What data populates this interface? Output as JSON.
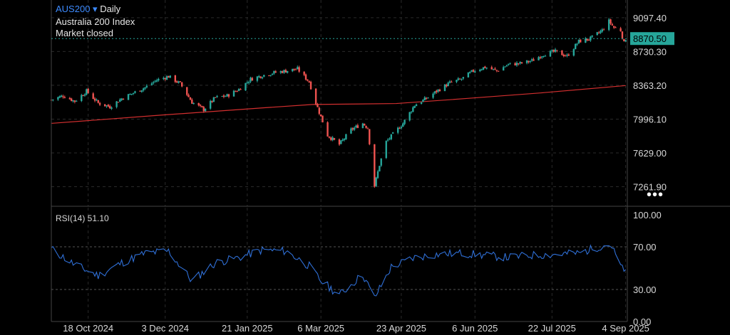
{
  "header": {
    "symbol": "AUS200",
    "dropdown_icon": "▾",
    "interval": "Daily",
    "name": "Australia 200 Index",
    "status": "Market closed"
  },
  "colors": {
    "up": "#26a69a",
    "down": "#ef5350",
    "ma": "#d32f2f",
    "rsi": "#2f6fd6",
    "grid": "#2a2a2a",
    "last_label_bg": "#26a69a"
  },
  "price_axis": {
    "ticks": [
      "9097.40",
      "8730.30",
      "8363.20",
      "7996.10",
      "7629.00",
      "7261.90"
    ],
    "last_price": "8870.50"
  },
  "time_axis": {
    "labels": [
      "18 Oct 2024",
      "3 Dec 2024",
      "21 Jan 2025",
      "6 Mar 2025",
      "23 Apr 2025",
      "6 Jun 2025",
      "22 Jul 2025",
      "4 Sep 2025"
    ]
  },
  "rsi": {
    "label": "RSI(14)",
    "value": "51.10",
    "ticks": [
      "100.00",
      "70.00",
      "30.00",
      "0.00"
    ]
  },
  "more_icon": "•••",
  "chart_data": {
    "type": "line",
    "price_range": [
      7050,
      9150
    ],
    "date_range": [
      "2024-09-26",
      "2025-09-05"
    ],
    "closes": [
      [
        "2024-09-26",
        8205
      ],
      [
        "2024-10-03",
        8250
      ],
      [
        "2024-10-10",
        8190
      ],
      [
        "2024-10-17",
        8300
      ],
      [
        "2024-10-24",
        8170
      ],
      [
        "2024-10-31",
        8130
      ],
      [
        "2024-11-07",
        8220
      ],
      [
        "2024-11-14",
        8280
      ],
      [
        "2024-11-21",
        8340
      ],
      [
        "2024-11-28",
        8420
      ],
      [
        "2024-12-05",
        8460
      ],
      [
        "2024-12-12",
        8380
      ],
      [
        "2024-12-19",
        8180
      ],
      [
        "2024-12-26",
        8100
      ],
      [
        "2025-01-02",
        8230
      ],
      [
        "2025-01-09",
        8250
      ],
      [
        "2025-01-16",
        8320
      ],
      [
        "2025-01-23",
        8430
      ],
      [
        "2025-01-30",
        8470
      ],
      [
        "2025-02-06",
        8500
      ],
      [
        "2025-02-13",
        8520
      ],
      [
        "2025-02-20",
        8540
      ],
      [
        "2025-02-27",
        8400
      ],
      [
        "2025-03-03",
        8170
      ],
      [
        "2025-03-10",
        7820
      ],
      [
        "2025-03-17",
        7720
      ],
      [
        "2025-03-24",
        7880
      ],
      [
        "2025-03-31",
        7950
      ],
      [
        "2025-04-03",
        7900
      ],
      [
        "2025-04-07",
        7270
      ],
      [
        "2025-04-10",
        7500
      ],
      [
        "2025-04-14",
        7750
      ],
      [
        "2025-04-24",
        7950
      ],
      [
        "2025-05-01",
        8150
      ],
      [
        "2025-05-08",
        8220
      ],
      [
        "2025-05-15",
        8310
      ],
      [
        "2025-05-22",
        8390
      ],
      [
        "2025-05-29",
        8430
      ],
      [
        "2025-06-05",
        8520
      ],
      [
        "2025-06-12",
        8560
      ],
      [
        "2025-06-19",
        8520
      ],
      [
        "2025-06-26",
        8590
      ],
      [
        "2025-07-03",
        8600
      ],
      [
        "2025-07-10",
        8630
      ],
      [
        "2025-07-17",
        8700
      ],
      [
        "2025-07-24",
        8730
      ],
      [
        "2025-07-31",
        8680
      ],
      [
        "2025-08-07",
        8840
      ],
      [
        "2025-08-14",
        8870
      ],
      [
        "2025-08-21",
        8960
      ],
      [
        "2025-08-25",
        9060
      ],
      [
        "2025-08-28",
        8990
      ],
      [
        "2025-09-01",
        8960
      ],
      [
        "2025-09-03",
        8820
      ],
      [
        "2025-09-04",
        8870.5
      ]
    ],
    "moving_average": [
      [
        "2024-09-26",
        7950
      ],
      [
        "2024-12-01",
        8040
      ],
      [
        "2025-02-01",
        8120
      ],
      [
        "2025-03-01",
        8155
      ],
      [
        "2025-04-20",
        8165
      ],
      [
        "2025-06-01",
        8220
      ],
      [
        "2025-07-15",
        8280
      ],
      [
        "2025-09-04",
        8360
      ]
    ],
    "rsi_values": [
      [
        "2024-09-26",
        68
      ],
      [
        "2024-10-10",
        53
      ],
      [
        "2024-10-24",
        43
      ],
      [
        "2024-11-07",
        55
      ],
      [
        "2024-11-21",
        64
      ],
      [
        "2024-12-05",
        66
      ],
      [
        "2024-12-19",
        38
      ],
      [
        "2025-01-02",
        55
      ],
      [
        "2025-01-16",
        60
      ],
      [
        "2025-01-30",
        67
      ],
      [
        "2025-02-13",
        66
      ],
      [
        "2025-02-27",
        52
      ],
      [
        "2025-03-06",
        38
      ],
      [
        "2025-03-17",
        25
      ],
      [
        "2025-03-31",
        44
      ],
      [
        "2025-04-07",
        22
      ],
      [
        "2025-04-17",
        51
      ],
      [
        "2025-05-01",
        60
      ],
      [
        "2025-05-15",
        63
      ],
      [
        "2025-05-29",
        64
      ],
      [
        "2025-06-12",
        62
      ],
      [
        "2025-06-26",
        60
      ],
      [
        "2025-07-10",
        62
      ],
      [
        "2025-07-24",
        63
      ],
      [
        "2025-08-07",
        64
      ],
      [
        "2025-08-21",
        71
      ],
      [
        "2025-08-26",
        72
      ],
      [
        "2025-09-03",
        46
      ],
      [
        "2025-09-04",
        51.1
      ]
    ],
    "rsi_range": [
      0,
      100
    ],
    "rsi_levels": [
      70,
      30
    ]
  }
}
